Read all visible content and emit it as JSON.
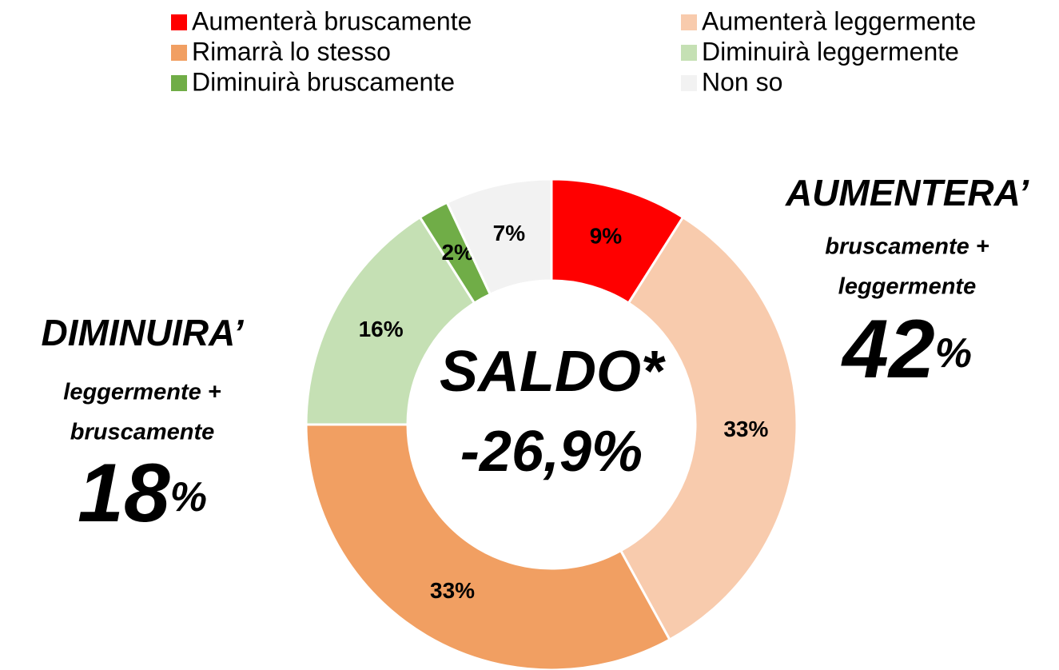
{
  "chart_data": {
    "type": "donut",
    "categories": [
      "Aumenterà bruscamente",
      "Aumenterà leggermente",
      "Rimarrà lo stesso",
      "Diminuirà leggermente",
      "Diminuirà bruscamente",
      "Non so"
    ],
    "values": [
      9,
      33,
      33,
      16,
      2,
      7
    ],
    "value_labels": [
      "9%",
      "33%",
      "33%",
      "16%",
      "2%",
      "7%"
    ],
    "colors": [
      "#ff0000",
      "#f8cbad",
      "#f19f62",
      "#c5e0b4",
      "#70ad47",
      "#f2f2f2"
    ],
    "center_label": [
      "SALDO*",
      "-26,9%"
    ],
    "annotations": [
      {
        "title": "DIMINUIRA’",
        "subtitle": [
          "leggermente +",
          "bruscamente"
        ],
        "value": 18,
        "unit": "%"
      },
      {
        "title": "AUMENTERA’",
        "subtitle": [
          "bruscamente +",
          "leggermente"
        ],
        "value": 42,
        "unit": "%"
      }
    ]
  }
}
